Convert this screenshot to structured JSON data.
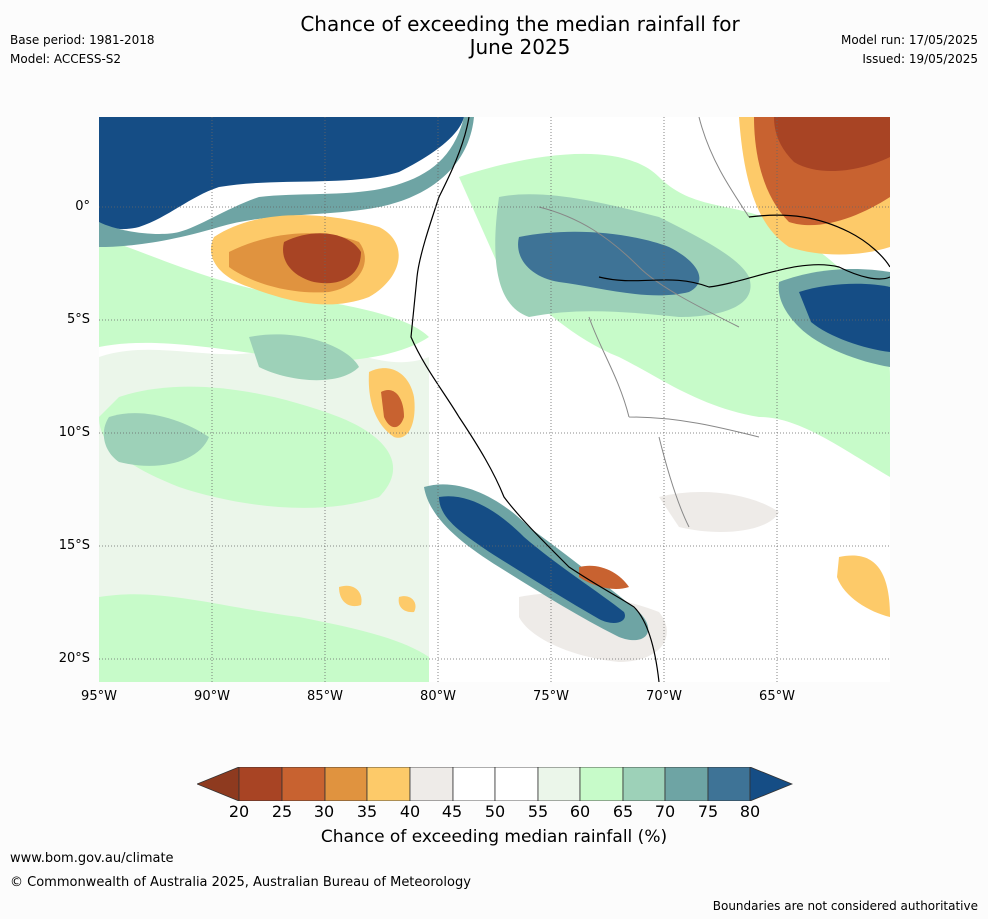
{
  "header": {
    "title_line1": "Chance of exceeding the median rainfall for",
    "title_line2": "June 2025",
    "base_period": "Base period: 1981-2018",
    "model": "Model: ACCESS-S2",
    "model_run": "Model run: 17/05/2025",
    "issued": "Issued: 19/05/2025"
  },
  "map": {
    "lat_labels": [
      "0°",
      "5°S",
      "10°S",
      "15°S",
      "20°S"
    ],
    "lon_labels": [
      "95°W",
      "90°W",
      "85°W",
      "80°W",
      "75°W",
      "70°W",
      "65°W"
    ],
    "colors": {
      "ocean_high": "#154d85",
      "very_high": "#3e7396",
      "high": "#6ea4a4",
      "mod_high": "#9dd1b8",
      "slight_high": "#c7fbc9",
      "near": "#ebf6ea",
      "neutral": "#ffffff",
      "grey": "#eeebe8",
      "low1": "#fdca69",
      "low2": "#e0933f",
      "low3": "#c86230",
      "low4": "#a84424",
      "coast": "#000000",
      "border": "#888888"
    }
  },
  "colorbar": {
    "ticks": [
      "20",
      "25",
      "30",
      "35",
      "40",
      "45",
      "50",
      "55",
      "60",
      "65",
      "70",
      "75",
      "80"
    ],
    "label": "Chance of exceeding median rainfall (%)",
    "colors": [
      "#8e3a1f",
      "#a84424",
      "#c86230",
      "#e0933f",
      "#fdca69",
      "#eeebe8",
      "#ffffff",
      "#ffffff",
      "#ebf6ea",
      "#c7fbc9",
      "#9dd1b8",
      "#6ea4a4",
      "#3e7396",
      "#154d85"
    ]
  },
  "footer": {
    "url": "www.bom.gov.au/climate",
    "copyright": "© Commonwealth of Australia 2025, Australian Bureau of Meteorology",
    "disclaimer": "Boundaries are not considered authoritative"
  }
}
